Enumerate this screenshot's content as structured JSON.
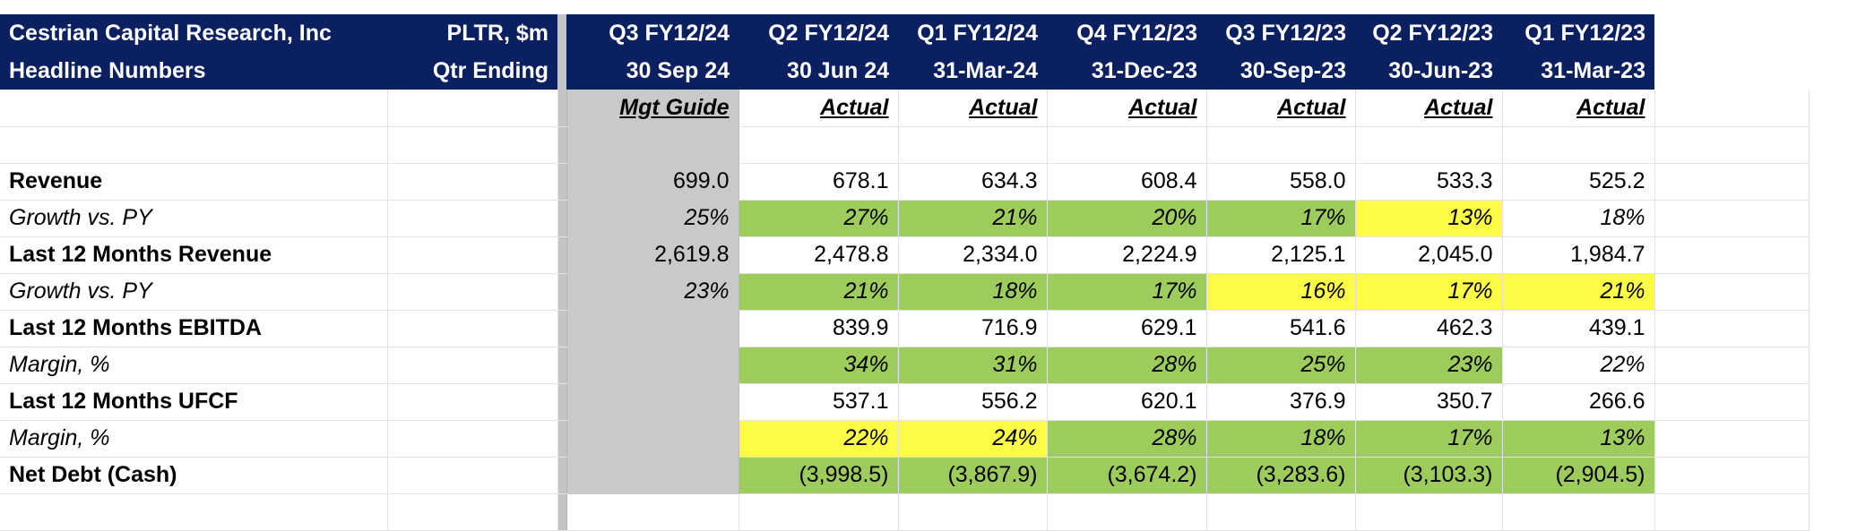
{
  "header": {
    "company": "Cestrian Capital Research, Inc",
    "subtitle": "Headline Numbers",
    "ticker": "PLTR, $m",
    "qtr_label": "Qtr Ending"
  },
  "columns": [
    {
      "quarter": "Q3 FY12/24",
      "date": "30 Sep 24",
      "basis": "Mgt Guide"
    },
    {
      "quarter": "Q2 FY12/24",
      "date": "30 Jun 24",
      "basis": "Actual"
    },
    {
      "quarter": "Q1 FY12/24",
      "date": "31-Mar-24",
      "basis": "Actual"
    },
    {
      "quarter": "Q4 FY12/23",
      "date": "31-Dec-23",
      "basis": "Actual"
    },
    {
      "quarter": "Q3 FY12/23",
      "date": "30-Sep-23",
      "basis": "Actual"
    },
    {
      "quarter": "Q2 FY12/23",
      "date": "30-Jun-23",
      "basis": "Actual"
    },
    {
      "quarter": "Q1 FY12/23",
      "date": "31-Mar-23",
      "basis": "Actual"
    }
  ],
  "rows": [
    {
      "label": "Revenue",
      "values": [
        "699.0",
        "678.1",
        "634.3",
        "608.4",
        "558.0",
        "533.3",
        "525.2"
      ]
    },
    {
      "label": "Growth vs. PY",
      "values": [
        "25%",
        "27%",
        "21%",
        "20%",
        "17%",
        "13%",
        "18%"
      ]
    },
    {
      "label": "Last 12 Months Revenue",
      "values": [
        "2,619.8",
        "2,478.8",
        "2,334.0",
        "2,224.9",
        "2,125.1",
        "2,045.0",
        "1,984.7"
      ]
    },
    {
      "label": "Growth vs. PY",
      "values": [
        "23%",
        "21%",
        "18%",
        "17%",
        "16%",
        "17%",
        "21%"
      ]
    },
    {
      "label": "Last 12 Months EBITDA",
      "values": [
        "",
        "839.9",
        "716.9",
        "629.1",
        "541.6",
        "462.3",
        "439.1"
      ]
    },
    {
      "label": "Margin, %",
      "values": [
        "",
        "34%",
        "31%",
        "28%",
        "25%",
        "23%",
        "22%"
      ]
    },
    {
      "label": "Last 12 Months UFCF",
      "values": [
        "",
        "537.1",
        "556.2",
        "620.1",
        "376.9",
        "350.7",
        "266.6"
      ]
    },
    {
      "label": "Margin, %",
      "values": [
        "",
        "22%",
        "24%",
        "28%",
        "18%",
        "17%",
        "13%"
      ]
    },
    {
      "label": "Net Debt (Cash)",
      "values": [
        "",
        "(3,998.5)",
        "(3,867.9)",
        "(3,674.2)",
        "(3,283.6)",
        "(3,103.3)",
        "(2,904.5)"
      ]
    }
  ],
  "colors": {
    "header_bg": "#0b2060",
    "good": "#9dcc5c",
    "warning": "#fcfb46",
    "guide_shade": "#c9c9c9",
    "negative_text": "#d8372b"
  }
}
